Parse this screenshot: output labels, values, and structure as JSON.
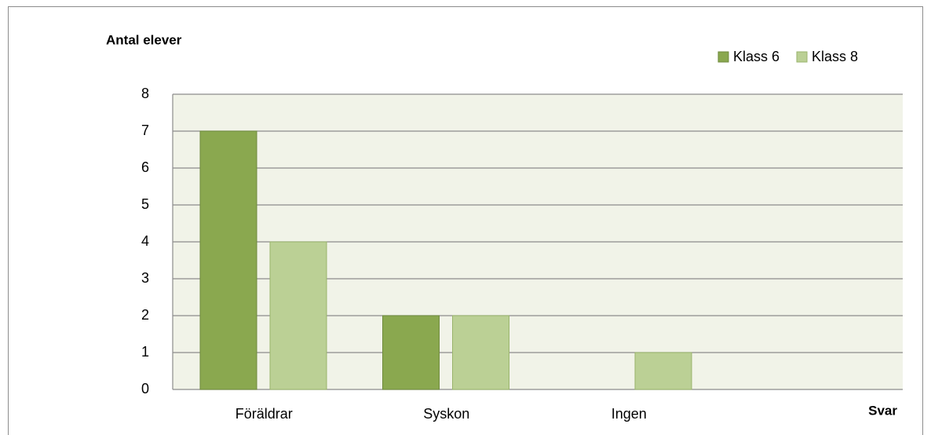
{
  "chart_data": {
    "type": "bar",
    "y_label": "Antal elever",
    "x_label": "Svar",
    "categories": [
      "Föräldrar",
      "Syskon",
      "Ingen",
      null
    ],
    "series": [
      {
        "name": "Klass 6",
        "color": "#8aa84f",
        "values": [
          7,
          2,
          0,
          null
        ]
      },
      {
        "name": "Klass 8",
        "color": "#bbd095",
        "values": [
          4,
          2,
          1,
          null
        ]
      }
    ],
    "ylim": [
      0,
      8
    ],
    "yticks": [
      0,
      1,
      2,
      3,
      4,
      5,
      6,
      7,
      8
    ],
    "grid": true,
    "legend": "top-right"
  }
}
